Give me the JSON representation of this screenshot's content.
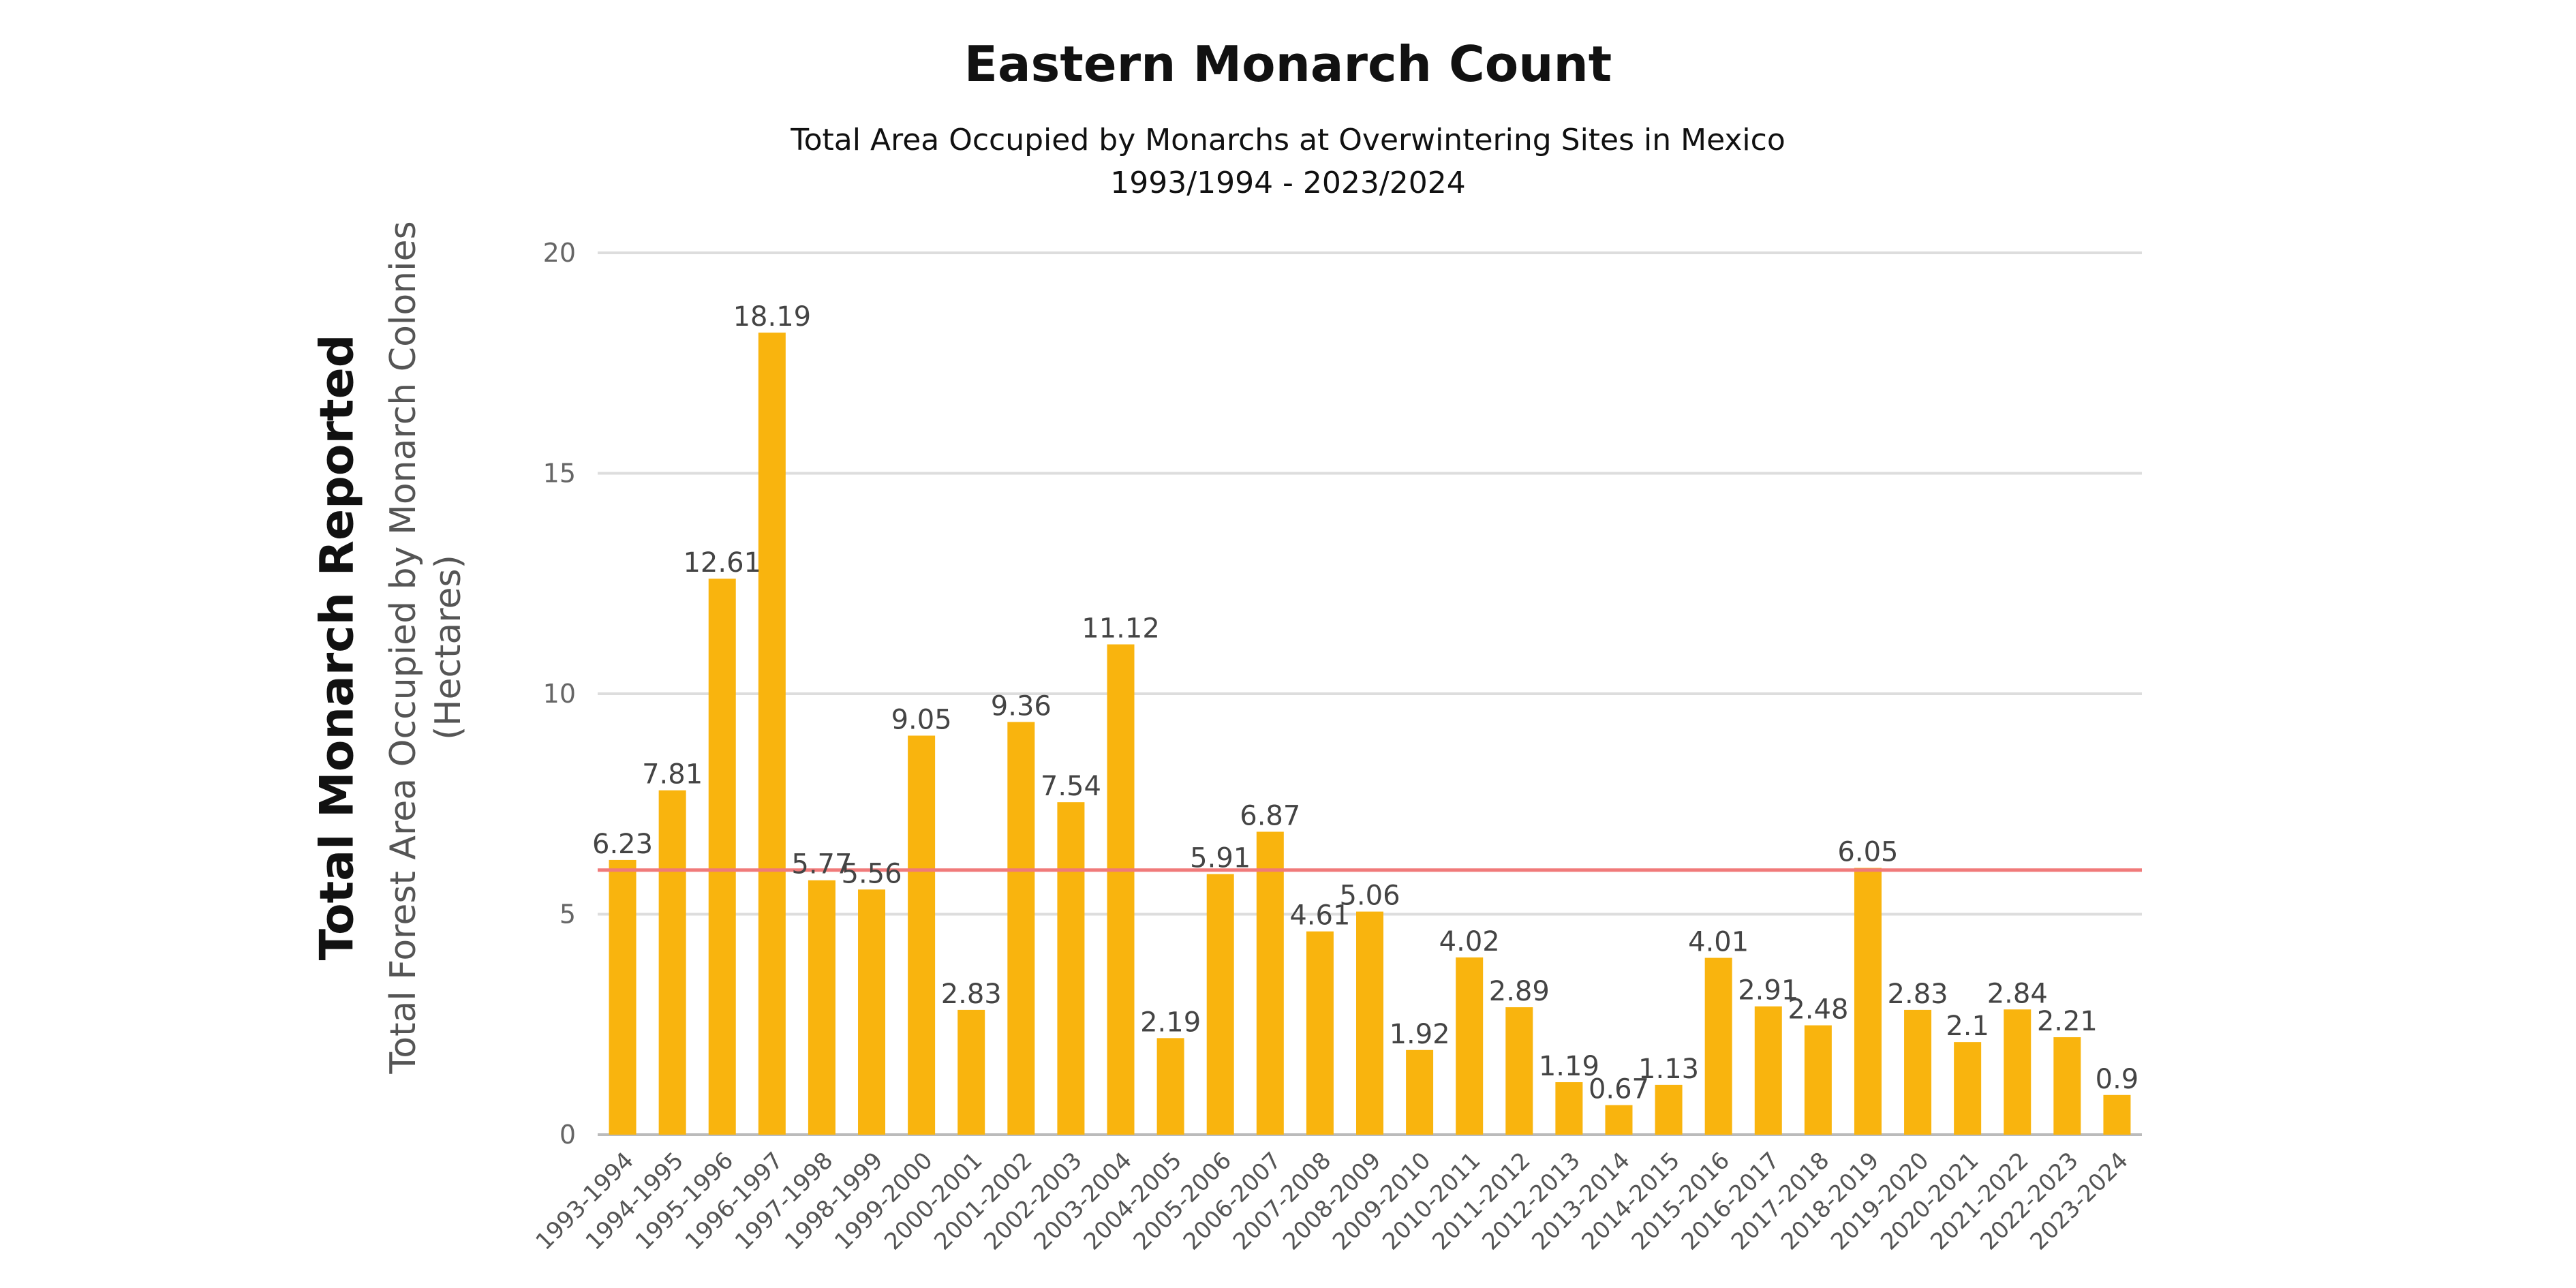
{
  "chart_data": {
    "type": "bar",
    "title": "Eastern Monarch Count",
    "subtitle": [
      "Total Area Occupied by Monarchs at Overwintering Sites in Mexico",
      "1993/1994 - 2023/2024"
    ],
    "ylabel_main": "Total Monarch Reported",
    "ylabel": [
      "Total Forest Area Occupied by Monarch Colonies",
      "(Hectares)"
    ],
    "xlabel": "",
    "ylim": [
      0,
      20
    ],
    "yticks": [
      0,
      5,
      10,
      15,
      20
    ],
    "grid": true,
    "reference_line": {
      "value": 6,
      "color": "#F07A7A"
    },
    "bar_color": "#F9B40E",
    "categories": [
      "1993-1994",
      "1994-1995",
      "1995-1996",
      "1996-1997",
      "1997-1998",
      "1998-1999",
      "1999-2000",
      "2000-2001",
      "2001-2002",
      "2002-2003",
      "2003-2004",
      "2004-2005",
      "2005-2006",
      "2006-2007",
      "2007-2008",
      "2008-2009",
      "2009-2010",
      "2010-2011",
      "2011-2012",
      "2012-2013",
      "2013-2014",
      "2014-2015",
      "2015-2016",
      "2016-2017",
      "2017-2018",
      "2018-2019",
      "2019-2020",
      "2020-2021",
      "2021-2022",
      "2022-2023",
      "2023-2024"
    ],
    "values": [
      6.23,
      7.81,
      12.61,
      18.19,
      5.77,
      5.56,
      9.05,
      2.83,
      9.36,
      7.54,
      11.12,
      2.19,
      5.91,
      6.87,
      4.61,
      5.06,
      1.92,
      4.02,
      2.89,
      1.19,
      0.67,
      1.13,
      4.01,
      2.91,
      2.48,
      6.05,
      2.83,
      2.1,
      2.84,
      2.21,
      0.9
    ],
    "data_labels": [
      "6.23",
      "7.81",
      "12.61",
      "18.19",
      "5.77",
      "5.56",
      "9.05",
      "2.83",
      "9.36",
      "7.54",
      "11.12",
      "2.19",
      "5.91",
      "6.87",
      "4.61",
      "5.06",
      "1.92",
      "4.02",
      "2.89",
      "1.19",
      "0.67",
      "1.13",
      "4.01",
      "2.91",
      "2.48",
      "6.05",
      "2.83",
      "2.1",
      "2.84",
      "2.21",
      "0.9"
    ]
  }
}
